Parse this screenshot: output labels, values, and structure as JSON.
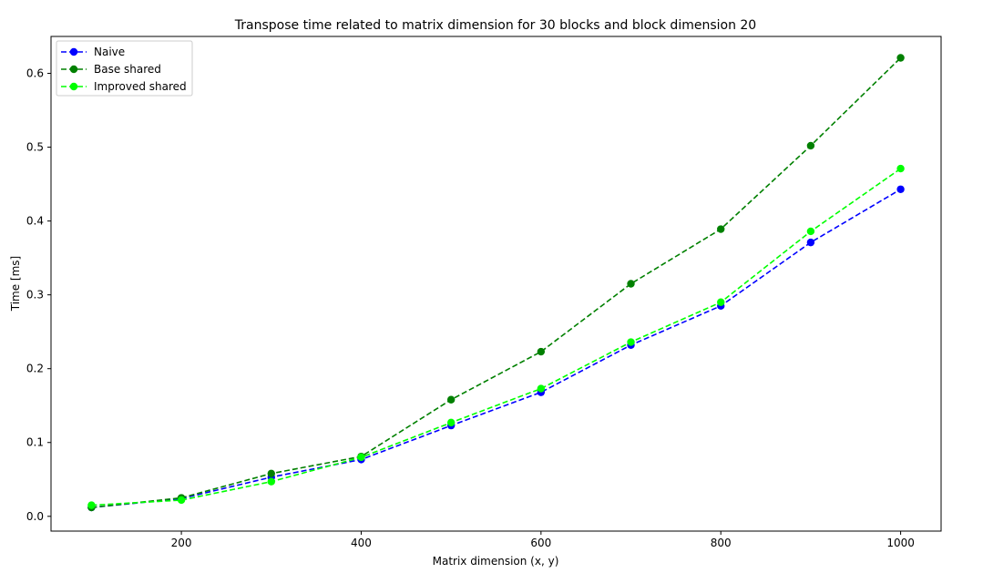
{
  "chart_data": {
    "type": "line",
    "title": "Transpose time related to matrix dimension for 30 blocks and block dimension 20",
    "xlabel": "Matrix dimension (x, y)",
    "ylabel": "Time [ms]",
    "xlim": [
      55,
      1045
    ],
    "ylim": [
      -0.02,
      0.65
    ],
    "xticks": [
      200,
      400,
      600,
      800,
      1000
    ],
    "yticks": [
      0.0,
      0.1,
      0.2,
      0.3,
      0.4,
      0.5,
      0.6
    ],
    "xtick_labels": [
      "200",
      "400",
      "600",
      "800",
      "1000"
    ],
    "ytick_labels": [
      "0.0",
      "0.1",
      "0.2",
      "0.3",
      "0.4",
      "0.5",
      "0.6"
    ],
    "grid": false,
    "legend_position": "upper-left",
    "x": [
      100,
      200,
      300,
      400,
      500,
      600,
      700,
      800,
      900,
      1000
    ],
    "series": [
      {
        "name": "Naive",
        "color": "#0000ff",
        "line_style": "dashed",
        "marker": "circle",
        "values": [
          0.012,
          0.024,
          0.053,
          0.077,
          0.123,
          0.168,
          0.232,
          0.285,
          0.371,
          0.443
        ]
      },
      {
        "name": "Base shared",
        "color": "#008000",
        "line_style": "dashed",
        "marker": "circle",
        "values": [
          0.012,
          0.025,
          0.058,
          0.081,
          0.158,
          0.223,
          0.315,
          0.389,
          0.502,
          0.621
        ]
      },
      {
        "name": "Improved shared",
        "color": "#00ff00",
        "line_style": "dashed",
        "marker": "circle",
        "values": [
          0.015,
          0.022,
          0.047,
          0.08,
          0.127,
          0.173,
          0.236,
          0.29,
          0.386,
          0.471
        ]
      }
    ]
  }
}
